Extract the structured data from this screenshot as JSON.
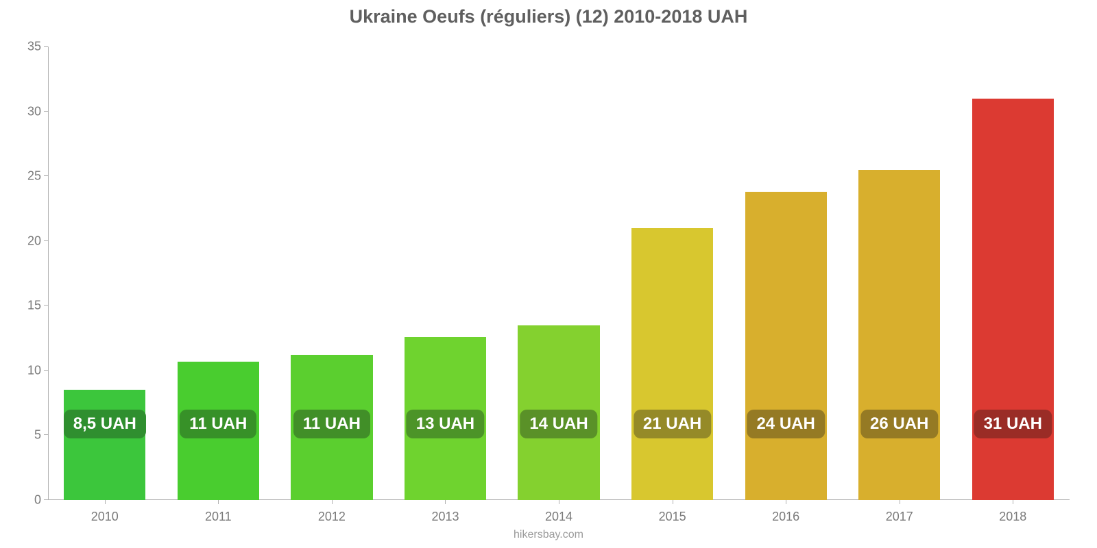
{
  "chart": {
    "type": "bar",
    "title": "Ukraine Oeufs (réguliers) (12) 2010-2018 UAH",
    "title_fontsize": 27,
    "title_color": "#5f5f5f",
    "background_color": "#ffffff",
    "axis_line_color": "#b0b0b0",
    "ylim": [
      0,
      35
    ],
    "yticks": [
      0,
      5,
      10,
      15,
      20,
      25,
      30,
      35
    ],
    "ytick_fontsize": 18,
    "ytick_color": "#7a7a7a",
    "xtick_fontsize": 18,
    "xtick_color": "#7a7a7a",
    "value_label_fontsize": 24,
    "value_label_text_color": "#ffffff",
    "categories": [
      "2010",
      "2011",
      "2012",
      "2013",
      "2014",
      "2015",
      "2016",
      "2017",
      "2018"
    ],
    "values": [
      8.5,
      10.7,
      11.2,
      12.6,
      13.5,
      21.0,
      23.8,
      25.5,
      31.0
    ],
    "value_labels": [
      "8,5 UAH",
      "11 UAH",
      "11 UAH",
      "13 UAH",
      "14 UAH",
      "21 UAH",
      "24 UAH",
      "26 UAH",
      "31 UAH"
    ],
    "bar_colors": [
      "#3cc63c",
      "#49cd2f",
      "#5bcf2f",
      "#6fd32f",
      "#84d12f",
      "#d8c72f",
      "#d8af2d",
      "#d8af2d",
      "#dc3a32"
    ],
    "badge_colors": [
      "#2f8f2f",
      "#379128",
      "#418f28",
      "#4c9428",
      "#5a9128",
      "#958a28",
      "#957a24",
      "#957a24",
      "#9a2c26"
    ],
    "value_label_offset_from_base": 90,
    "bar_width_ratio": 0.72,
    "attribution": "hikersbay.com",
    "attribution_fontsize": 16,
    "attribution_color": "#9a9a9a"
  }
}
